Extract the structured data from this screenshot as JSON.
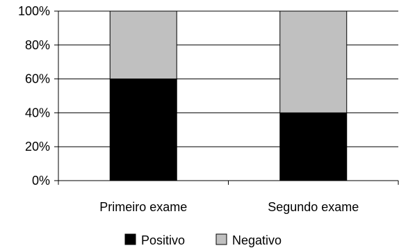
{
  "chart_data": {
    "type": "bar",
    "stacked": true,
    "stack_mode": "percent",
    "categories": [
      "Primeiro exame",
      "Segundo exame"
    ],
    "series": [
      {
        "name": "Positivo",
        "values": [
          60,
          40
        ],
        "color": "#000000"
      },
      {
        "name": "Negativo",
        "values": [
          40,
          60
        ],
        "color": "#c0c0c0"
      }
    ],
    "ylim": [
      0,
      100
    ],
    "yticks": [
      "0%",
      "20%",
      "40%",
      "60%",
      "80%",
      "100%"
    ],
    "grid": true,
    "legend_position": "bottom"
  }
}
